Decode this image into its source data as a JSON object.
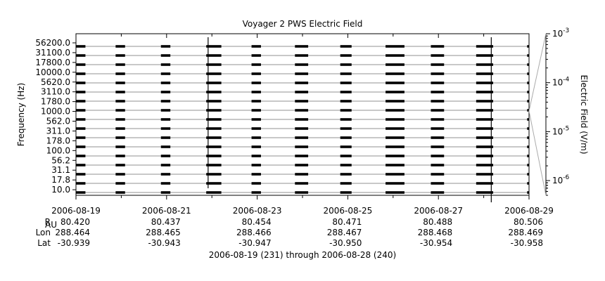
{
  "chart_data": {
    "type": "line",
    "title": "Voyager 2 PWS Electric Field",
    "ylabel": "Frequency (Hz)",
    "y_ticks": [
      "56200.0",
      "31100.0",
      "17800.0",
      "10000.0",
      "5620.0",
      "3110.0",
      "1780.0",
      "1000.0",
      "562.0",
      "311.0",
      "178.0",
      "100.0",
      "56.2",
      "31.1",
      "17.8",
      "10.0"
    ],
    "channels_hz": [
      10.0,
      17.8,
      31.1,
      56.2,
      100.0,
      178.0,
      311.0,
      562.0,
      1000.0,
      1780.0,
      3110.0,
      5620.0,
      10000.0,
      17800.0,
      31100.0,
      56200.0
    ],
    "x_tick_labels": [
      "2006-08-19",
      "2006-08-21",
      "2006-08-23",
      "2006-08-25",
      "2006-08-27",
      "2006-08-29"
    ],
    "xlim": [
      "2006-08-19",
      "2006-08-29"
    ],
    "data_segments": [
      [
        "2006-08-19",
        "2006-08-19 05:00"
      ],
      [
        "2006-08-19 21:00",
        "2006-08-20 02:00"
      ],
      [
        "2006-08-20 21:00",
        "2006-08-21 02:00"
      ],
      [
        "2006-08-21 21:00",
        "2006-08-22 05:00"
      ],
      [
        "2006-08-22 21:00",
        "2006-08-23 02:00"
      ],
      [
        "2006-08-23 20:00",
        "2006-08-24 03:00"
      ],
      [
        "2006-08-24 20:00",
        "2006-08-25 02:00"
      ],
      [
        "2006-08-25 20:00",
        "2006-08-26 06:00"
      ],
      [
        "2006-08-26 20:00",
        "2006-08-27 03:00"
      ],
      [
        "2006-08-27 20:00",
        "2006-08-28 05:00"
      ],
      [
        "2006-08-28 23:00",
        "2006-08-29"
      ]
    ],
    "colorbar": {
      "label": "Electric Field (V/m)",
      "scale": "log",
      "range": [
        5e-07,
        0.001
      ],
      "tick_labels": [
        {
          "base": "10",
          "exp": "-3",
          "value": 0.001
        },
        {
          "base": "10",
          "exp": "-4",
          "value": 0.0001
        },
        {
          "base": "10",
          "exp": "-5",
          "value": 1e-05
        },
        {
          "base": "10",
          "exp": "-6",
          "value": 1e-06
        }
      ]
    },
    "ephemeris": {
      "rows": [
        {
          "label": "R",
          "sub": "AU",
          "values": [
            "80.420",
            "80.437",
            "80.454",
            "80.471",
            "80.488",
            "80.506"
          ]
        },
        {
          "label": "Lon",
          "sub": "",
          "values": [
            "288.464",
            "288.465",
            "288.466",
            "288.467",
            "288.468",
            "288.469"
          ]
        },
        {
          "label": "Lat",
          "sub": "",
          "values": [
            "-30.939",
            "-30.943",
            "-30.947",
            "-30.950",
            "-30.954",
            "-30.958"
          ]
        }
      ]
    },
    "footer": "2006-08-19 (231) through 2006-08-28 (240)",
    "grid": false,
    "colors": {
      "trace": "#000000",
      "axis": "#000000",
      "connector": "#aaaaaa"
    }
  }
}
